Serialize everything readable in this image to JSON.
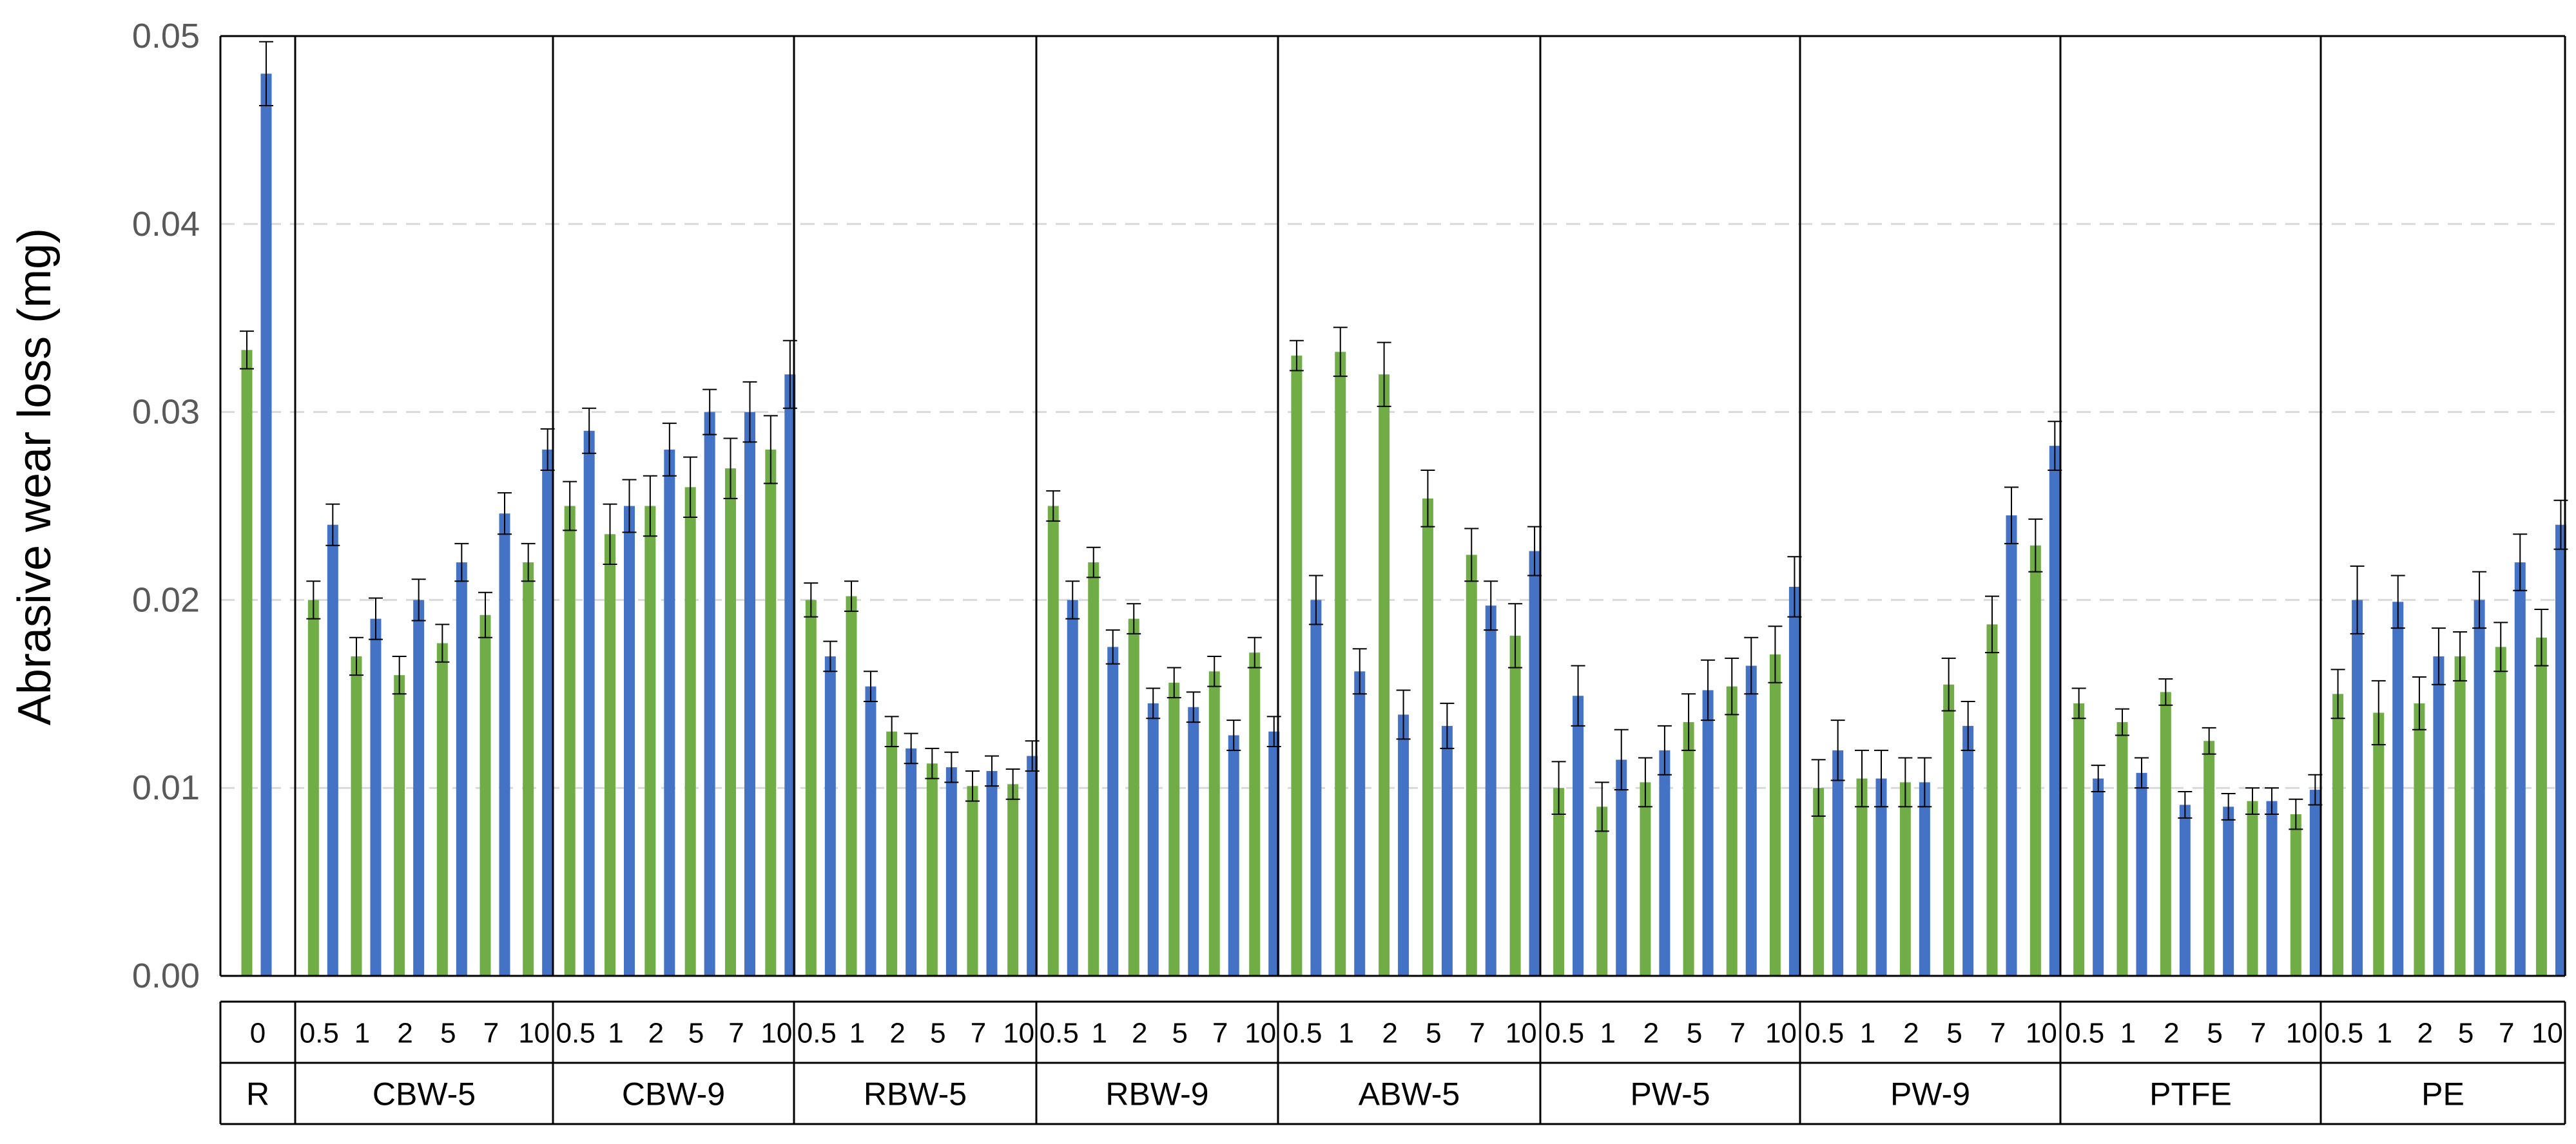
{
  "chart_data": {
    "type": "bar",
    "title": "",
    "xlabel": "",
    "ylabel": "Abrasive wear loss (mg)",
    "ylim": [
      0,
      0.05
    ],
    "yticks": [
      "0.00",
      "0.01",
      "0.02",
      "0.03",
      "0.04",
      "0.05"
    ],
    "grid": "horizontal dashed",
    "legend": "none",
    "colors": {
      "series_a": "#70ad47",
      "series_b": "#4472c4",
      "grid": "#d9d9d9",
      "frame": "#000000",
      "error_bar": "#000000"
    },
    "groups": [
      {
        "name": "R",
        "levels": [
          "0"
        ],
        "series_a": [
          0.0333
        ],
        "series_a_err": [
          0.001
        ],
        "series_b": [
          0.048
        ],
        "series_b_err": [
          0.0017
        ]
      },
      {
        "name": "CBW-5",
        "levels": [
          "0.5",
          "1",
          "2",
          "5",
          "7",
          "10"
        ],
        "series_a": [
          0.02,
          0.017,
          0.016,
          0.0177,
          0.0192,
          0.022
        ],
        "series_a_err": [
          0.001,
          0.001,
          0.001,
          0.001,
          0.0012,
          0.001
        ],
        "series_b": [
          0.024,
          0.019,
          0.02,
          0.022,
          0.0246,
          0.028
        ],
        "series_b_err": [
          0.0011,
          0.0011,
          0.0011,
          0.001,
          0.0011,
          0.0011
        ]
      },
      {
        "name": "CBW-9",
        "levels": [
          "0.5",
          "1",
          "2",
          "5",
          "7",
          "10"
        ],
        "series_a": [
          0.025,
          0.0235,
          0.025,
          0.026,
          0.027,
          0.028
        ],
        "series_a_err": [
          0.0013,
          0.0016,
          0.0016,
          0.0016,
          0.0016,
          0.0018
        ],
        "series_b": [
          0.029,
          0.025,
          0.028,
          0.03,
          0.03,
          0.032
        ],
        "series_b_err": [
          0.0012,
          0.0014,
          0.0014,
          0.0012,
          0.0016,
          0.0018
        ]
      },
      {
        "name": "RBW-5",
        "levels": [
          "0.5",
          "1",
          "2",
          "5",
          "7",
          "10"
        ],
        "series_a": [
          0.02,
          0.0202,
          0.013,
          0.0113,
          0.0101,
          0.0102
        ],
        "series_a_err": [
          0.0009,
          0.0008,
          0.0008,
          0.0008,
          0.0008,
          0.0008
        ],
        "series_b": [
          0.017,
          0.0154,
          0.0121,
          0.0111,
          0.0109,
          0.0117
        ],
        "series_b_err": [
          0.0008,
          0.0008,
          0.0008,
          0.0008,
          0.0008,
          0.0008
        ]
      },
      {
        "name": "RBW-9",
        "levels": [
          "0.5",
          "1",
          "2",
          "5",
          "7",
          "10"
        ],
        "series_a": [
          0.025,
          0.022,
          0.019,
          0.0156,
          0.0162,
          0.0172
        ],
        "series_a_err": [
          0.0008,
          0.0008,
          0.0008,
          0.0008,
          0.0008,
          0.0008
        ],
        "series_b": [
          0.02,
          0.0175,
          0.0145,
          0.0143,
          0.0128,
          0.013
        ],
        "series_b_err": [
          0.001,
          0.0009,
          0.0008,
          0.0008,
          0.0008,
          0.0008
        ]
      },
      {
        "name": "ABW-5",
        "levels": [
          "0.5",
          "1",
          "2",
          "5",
          "7",
          "10"
        ],
        "series_a": [
          0.033,
          0.0332,
          0.032,
          0.0254,
          0.0224,
          0.0181
        ],
        "series_a_err": [
          0.0008,
          0.0013,
          0.0017,
          0.0015,
          0.0014,
          0.0017
        ],
        "series_b": [
          0.02,
          0.0162,
          0.0139,
          0.0133,
          0.0197,
          0.0226
        ],
        "series_b_err": [
          0.0013,
          0.0012,
          0.0013,
          0.0012,
          0.0013,
          0.0013
        ]
      },
      {
        "name": "PW-5",
        "levels": [
          "0.5",
          "1",
          "2",
          "5",
          "7",
          "10"
        ],
        "series_a": [
          0.01,
          0.009,
          0.0103,
          0.0135,
          0.0154,
          0.0171
        ],
        "series_a_err": [
          0.0014,
          0.0013,
          0.0013,
          0.0015,
          0.0015,
          0.0015
        ],
        "series_b": [
          0.0149,
          0.0115,
          0.012,
          0.0152,
          0.0165,
          0.0207
        ],
        "series_b_err": [
          0.0016,
          0.0016,
          0.0013,
          0.0016,
          0.0015,
          0.0016
        ]
      },
      {
        "name": "PW-9",
        "levels": [
          "0.5",
          "1",
          "2",
          "5",
          "7",
          "10"
        ],
        "series_a": [
          0.01,
          0.0105,
          0.0103,
          0.0155,
          0.0187,
          0.0229
        ],
        "series_a_err": [
          0.0015,
          0.0015,
          0.0013,
          0.0014,
          0.0015,
          0.0014
        ],
        "series_b": [
          0.012,
          0.0105,
          0.0103,
          0.0133,
          0.0245,
          0.0282
        ],
        "series_b_err": [
          0.0016,
          0.0015,
          0.0013,
          0.0013,
          0.0015,
          0.0013
        ]
      },
      {
        "name": "PTFE",
        "levels": [
          "0.5",
          "1",
          "2",
          "5",
          "7",
          "10"
        ],
        "series_a": [
          0.0145,
          0.0135,
          0.0151,
          0.0125,
          0.0093,
          0.0086
        ],
        "series_a_err": [
          0.0008,
          0.0007,
          0.0007,
          0.0007,
          0.0007,
          0.0008
        ],
        "series_b": [
          0.0105,
          0.0108,
          0.0091,
          0.009,
          0.0093,
          0.0099
        ],
        "series_b_err": [
          0.0007,
          0.0008,
          0.0007,
          0.0007,
          0.0007,
          0.0008
        ]
      },
      {
        "name": "PE",
        "levels": [
          "0.5",
          "1",
          "2",
          "5",
          "7",
          "10"
        ],
        "series_a": [
          0.015,
          0.014,
          0.0145,
          0.017,
          0.0175,
          0.018
        ],
        "series_a_err": [
          0.0013,
          0.0017,
          0.0014,
          0.0013,
          0.0013,
          0.0015
        ],
        "series_b": [
          0.02,
          0.0199,
          0.017,
          0.02,
          0.022,
          0.024
        ],
        "series_b_err": [
          0.0018,
          0.0014,
          0.0015,
          0.0015,
          0.0015,
          0.0013
        ]
      }
    ]
  }
}
